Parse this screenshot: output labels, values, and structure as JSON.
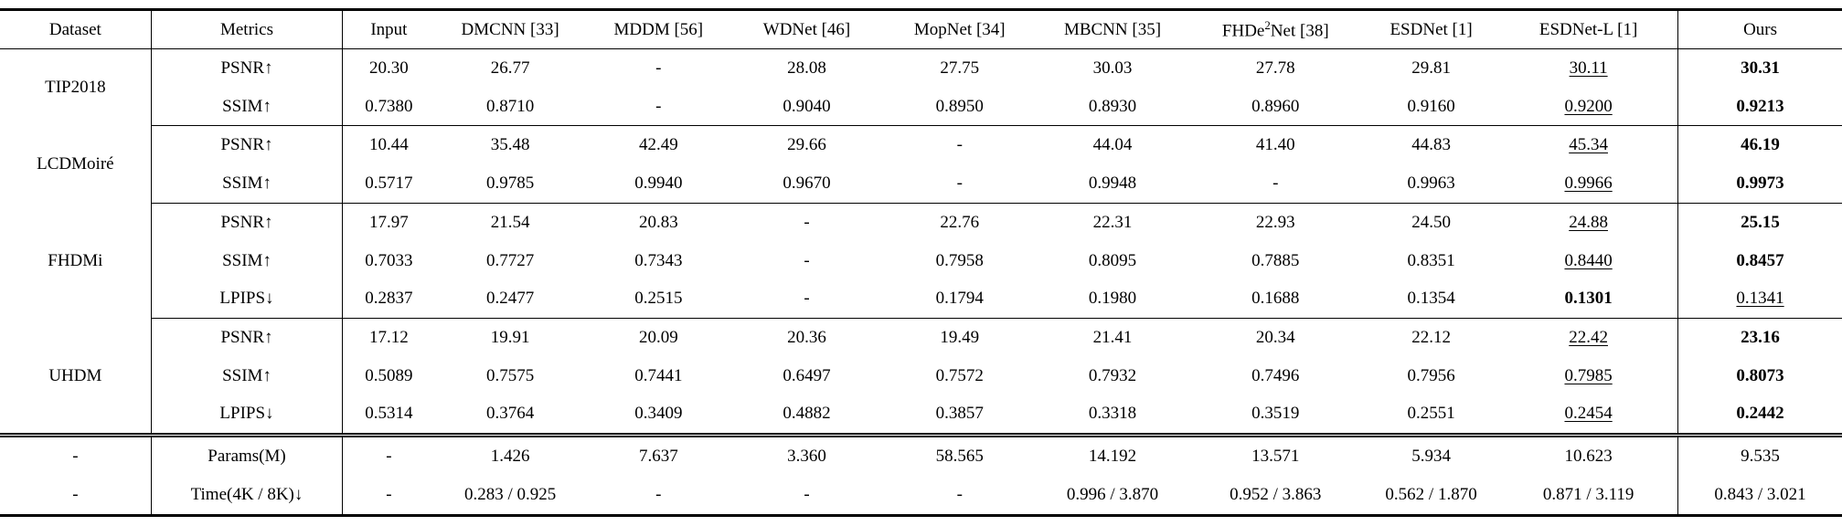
{
  "table": {
    "header": [
      "Dataset",
      "Metrics",
      "Input",
      "DMCNN [33]",
      "MDDM [56]",
      "WDNet [46]",
      "MopNet [34]",
      "MBCNN [35]",
      "FHDe²Net [38]",
      "ESDNet [1]",
      "ESDNet-L [1]",
      "Ours"
    ],
    "col_widths_pct": [
      8.2,
      10.4,
      5.0,
      8.2,
      7.9,
      8.2,
      8.4,
      8.2,
      9.5,
      7.4,
      9.7,
      8.9
    ],
    "groups": [
      {
        "dataset": "TIP2018",
        "rows": [
          {
            "metric": "PSNR↑",
            "values": [
              "20.30",
              "26.77",
              "-",
              "28.08",
              "27.75",
              "30.03",
              "27.78",
              "29.81",
              "30.11",
              "30.31"
            ],
            "underline": 8,
            "bold": 9
          },
          {
            "metric": "SSIM↑",
            "values": [
              "0.7380",
              "0.8710",
              "-",
              "0.9040",
              "0.8950",
              "0.8930",
              "0.8960",
              "0.9160",
              "0.9200",
              "0.9213"
            ],
            "underline": 8,
            "bold": 9
          }
        ]
      },
      {
        "dataset": "LCDMoiré",
        "rows": [
          {
            "metric": "PSNR↑",
            "values": [
              "10.44",
              "35.48",
              "42.49",
              "29.66",
              "-",
              "44.04",
              "41.40",
              "44.83",
              "45.34",
              "46.19"
            ],
            "underline": 8,
            "bold": 9
          },
          {
            "metric": "SSIM↑",
            "values": [
              "0.5717",
              "0.9785",
              "0.9940",
              "0.9670",
              "-",
              "0.9948",
              "-",
              "0.9963",
              "0.9966",
              "0.9973"
            ],
            "underline": 8,
            "bold": 9
          }
        ]
      },
      {
        "dataset": "FHDMi",
        "rows": [
          {
            "metric": "PSNR↑",
            "values": [
              "17.97",
              "21.54",
              "20.83",
              "-",
              "22.76",
              "22.31",
              "22.93",
              "24.50",
              "24.88",
              "25.15"
            ],
            "underline": 8,
            "bold": 9
          },
          {
            "metric": "SSIM↑",
            "values": [
              "0.7033",
              "0.7727",
              "0.7343",
              "-",
              "0.7958",
              "0.8095",
              "0.7885",
              "0.8351",
              "0.8440",
              "0.8457"
            ],
            "underline": 8,
            "bold": 9
          },
          {
            "metric": "LPIPS↓",
            "values": [
              "0.2837",
              "0.2477",
              "0.2515",
              "-",
              "0.1794",
              "0.1980",
              "0.1688",
              "0.1354",
              "0.1301",
              "0.1341"
            ],
            "underline": 9,
            "bold": 8
          }
        ]
      },
      {
        "dataset": "UHDM",
        "rows": [
          {
            "metric": "PSNR↑",
            "values": [
              "17.12",
              "19.91",
              "20.09",
              "20.36",
              "19.49",
              "21.41",
              "20.34",
              "22.12",
              "22.42",
              "23.16"
            ],
            "underline": 8,
            "bold": 9
          },
          {
            "metric": "SSIM↑",
            "values": [
              "0.5089",
              "0.7575",
              "0.7441",
              "0.6497",
              "0.7572",
              "0.7932",
              "0.7496",
              "0.7956",
              "0.7985",
              "0.8073"
            ],
            "underline": 8,
            "bold": 9
          },
          {
            "metric": "LPIPS↓",
            "values": [
              "0.5314",
              "0.3764",
              "0.3409",
              "0.4882",
              "0.3857",
              "0.3318",
              "0.3519",
              "0.2551",
              "0.2454",
              "0.2442"
            ],
            "underline": 8,
            "bold": 9
          }
        ]
      }
    ],
    "footer": [
      {
        "dataset": "-",
        "metric": "Params(M)",
        "values": [
          "-",
          "1.426",
          "7.637",
          "3.360",
          "58.565",
          "14.192",
          "13.571",
          "5.934",
          "10.623",
          "9.535"
        ],
        "underline": -1,
        "bold": -1
      },
      {
        "dataset": "-",
        "metric": "Time(4K / 8K)↓",
        "values": [
          "-",
          "0.283 / 0.925",
          "-",
          "-",
          "-",
          "0.996 / 3.870",
          "0.952 / 3.863",
          "0.562 / 1.870",
          "0.871 / 3.119",
          "0.843 / 3.021"
        ],
        "underline": -1,
        "bold": -1
      }
    ]
  }
}
